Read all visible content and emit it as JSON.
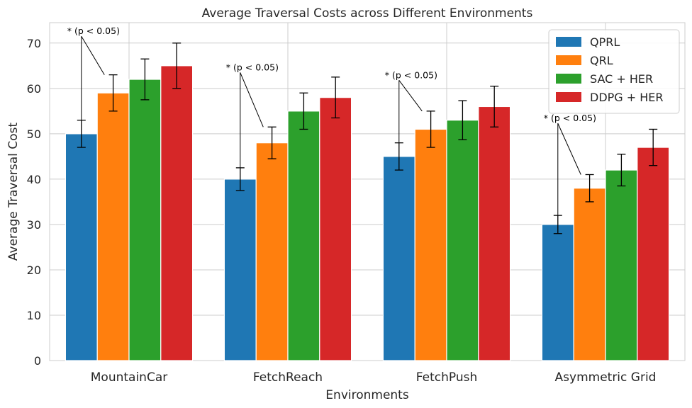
{
  "chart_data": {
    "type": "bar",
    "title": "Average Traversal Costs across Different Environments",
    "xlabel": "Environments",
    "ylabel": "Average Traversal Cost",
    "categories": [
      "MountainCar",
      "FetchReach",
      "FetchPush",
      "Asymmetric Grid"
    ],
    "ylim": [
      0,
      74.5
    ],
    "yticks": [
      0,
      10,
      20,
      30,
      40,
      50,
      60,
      70
    ],
    "grid": true,
    "legend_position": "top-right",
    "series": [
      {
        "name": "QPRL",
        "color": "#1f77b4",
        "values": [
          50,
          40,
          45,
          30
        ],
        "errors": [
          3,
          2.5,
          3,
          2
        ]
      },
      {
        "name": "QRL",
        "color": "#ff7f0e",
        "values": [
          59,
          48,
          51,
          38
        ],
        "errors": [
          4,
          3.5,
          4,
          3
        ]
      },
      {
        "name": "SAC + HER",
        "color": "#2ca02c",
        "values": [
          62,
          55,
          53,
          42
        ],
        "errors": [
          4.5,
          4,
          4.3,
          3.5
        ]
      },
      {
        "name": "DDPG + HER",
        "color": "#d62728",
        "values": [
          65,
          58,
          56,
          47
        ],
        "errors": [
          5,
          4.5,
          4.5,
          4
        ]
      }
    ],
    "annotations": [
      {
        "text": "* (p < 0.05)",
        "category": 0,
        "y": 71.5,
        "from_series": [
          0,
          1
        ]
      },
      {
        "text": "* (p < 0.05)",
        "category": 1,
        "y": 63.5,
        "from_series": [
          0,
          1
        ]
      },
      {
        "text": "* (p < 0.05)",
        "category": 2,
        "y": 61.8,
        "from_series": [
          0,
          1
        ]
      },
      {
        "text": "* (p < 0.05)",
        "category": 3,
        "y": 52.3,
        "from_series": [
          0,
          1
        ]
      }
    ]
  }
}
